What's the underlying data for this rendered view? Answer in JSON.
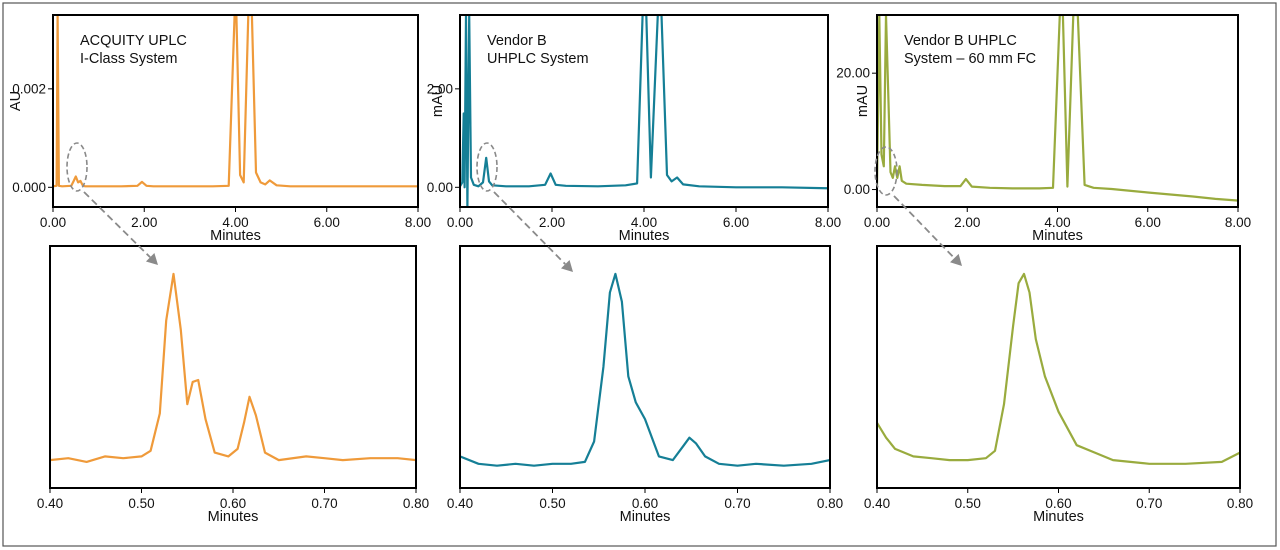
{
  "chart_data": [
    {
      "type": "line",
      "panel": "top-left",
      "annotation": [
        "ACQUITY UPLC",
        "I-Class System"
      ],
      "xlabel": "Minutes",
      "ylabel": "AU",
      "xlim": [
        0,
        8
      ],
      "ylim": [
        -0.0004,
        0.0035
      ],
      "xticks": [
        "0.00",
        "2.00",
        "4.00",
        "6.00",
        "8.00"
      ],
      "xtick_values": [
        0,
        2,
        4,
        6,
        8
      ],
      "yticks": [
        "0.000",
        "0.002"
      ],
      "ytick_values": [
        0,
        0.002
      ],
      "color": "#ef9a3a",
      "series": [
        {
          "x": [
            0,
            0.08,
            0.1,
            0.13,
            0.2,
            0.4,
            0.45,
            0.5,
            0.55,
            0.6,
            0.65,
            0.7,
            1.0,
            1.5,
            1.85,
            1.95,
            2.05,
            2.2,
            2.5,
            3.0,
            3.5,
            3.85,
            3.98,
            4.02,
            4.1,
            4.18,
            4.28,
            4.36,
            4.45,
            4.55,
            4.65,
            4.75,
            4.9,
            5.2,
            6.0,
            7.0,
            8.0
          ],
          "y": [
            2e-05,
            3e-05,
            0.0035,
            3e-05,
            2e-05,
            3e-05,
            0.00012,
            0.00022,
            0.0001,
            0.00013,
            4e-05,
            2e-05,
            2e-05,
            2e-05,
            3e-05,
            0.00011,
            3e-05,
            2e-05,
            2e-05,
            2e-05,
            2e-05,
            3e-05,
            0.0035,
            0.0035,
            0.00025,
            0.0001,
            0.0035,
            0.0035,
            0.0003,
            0.0001,
            6e-05,
            0.00014,
            4e-05,
            2e-05,
            2e-05,
            2e-05,
            2e-05
          ]
        }
      ]
    },
    {
      "type": "line",
      "panel": "top-middle",
      "annotation": [
        "Vendor B",
        "UHPLC System"
      ],
      "xlabel": "Minutes",
      "ylabel": "mAU",
      "xlim": [
        0,
        8
      ],
      "ylim": [
        -0.4,
        3.5
      ],
      "xticks": [
        "0.00",
        "2.00",
        "4.00",
        "6.00",
        "8.00"
      ],
      "xtick_values": [
        0,
        2,
        4,
        6,
        8
      ],
      "yticks": [
        "0.00",
        "2.00"
      ],
      "ytick_values": [
        0,
        2
      ],
      "color": "#157f96",
      "series": [
        {
          "x": [
            0,
            0.05,
            0.08,
            0.1,
            0.13,
            0.16,
            0.2,
            0.24,
            0.3,
            0.4,
            0.5,
            0.57,
            0.63,
            0.7,
            1.0,
            1.5,
            1.85,
            1.97,
            2.08,
            2.3,
            3.0,
            3.6,
            3.85,
            3.97,
            4.05,
            4.15,
            4.3,
            4.38,
            4.5,
            4.6,
            4.72,
            4.85,
            5.2,
            6.0,
            7.0,
            8.0
          ],
          "y": [
            0.02,
            0.1,
            1.5,
            0.0,
            3.5,
            -0.4,
            3.5,
            0.2,
            0.05,
            0.02,
            0.1,
            0.6,
            0.12,
            0.04,
            0.02,
            0.02,
            0.05,
            0.28,
            0.05,
            0.03,
            0.02,
            0.04,
            0.08,
            3.5,
            3.5,
            0.2,
            3.5,
            3.5,
            0.25,
            0.12,
            0.2,
            0.06,
            0.02,
            0.0,
            0.0,
            -0.02
          ]
        }
      ]
    },
    {
      "type": "line",
      "panel": "top-right",
      "annotation": [
        "Vendor B UHPLC",
        "System – 60 mm FC"
      ],
      "xlabel": "Minutes",
      "ylabel": "mAU",
      "xlim": [
        0,
        8
      ],
      "ylim": [
        -3,
        30
      ],
      "xticks": [
        "0.00",
        "2.00",
        "4.00",
        "6.00",
        "8.00"
      ],
      "xtick_values": [
        0,
        2,
        4,
        6,
        8
      ],
      "yticks": [
        "0.00",
        "20.00"
      ],
      "ytick_values": [
        0,
        20
      ],
      "color": "#99ab3e",
      "series": [
        {
          "x": [
            0,
            0.05,
            0.1,
            0.15,
            0.2,
            0.3,
            0.35,
            0.4,
            0.45,
            0.5,
            0.55,
            0.65,
            1.0,
            1.5,
            1.85,
            1.97,
            2.1,
            2.5,
            3.0,
            3.6,
            3.9,
            4.05,
            4.12,
            4.22,
            4.35,
            4.45,
            4.6,
            4.8,
            5.2,
            6.0,
            7.0,
            7.5,
            8.0
          ],
          "y": [
            0.5,
            30,
            6,
            4,
            30,
            3,
            2,
            4,
            2,
            4,
            1.5,
            1.0,
            0.8,
            0.6,
            0.6,
            1.8,
            0.5,
            0.3,
            0.2,
            0.2,
            0.3,
            30,
            30,
            0.5,
            30,
            30,
            0.8,
            0.3,
            0.1,
            -0.5,
            -1.2,
            -1.6,
            -1.9
          ]
        }
      ]
    },
    {
      "type": "line",
      "panel": "bottom-left",
      "xlabel": "Minutes",
      "xlim": [
        0.4,
        0.8
      ],
      "ylim": [
        -0.15,
        1.15
      ],
      "xticks": [
        "0.40",
        "0.50",
        "0.60",
        "0.70",
        "0.80"
      ],
      "xtick_values": [
        0.4,
        0.5,
        0.6,
        0.7,
        0.8
      ],
      "color": "#ef9a3a",
      "series": [
        {
          "x": [
            0.4,
            0.42,
            0.44,
            0.46,
            0.48,
            0.5,
            0.51,
            0.52,
            0.527,
            0.535,
            0.543,
            0.55,
            0.556,
            0.562,
            0.57,
            0.58,
            0.595,
            0.605,
            0.612,
            0.618,
            0.625,
            0.635,
            0.65,
            0.68,
            0.7,
            0.72,
            0.75,
            0.78,
            0.8
          ],
          "y": [
            0.0,
            0.01,
            -0.01,
            0.02,
            0.01,
            0.02,
            0.05,
            0.25,
            0.75,
            1.0,
            0.7,
            0.3,
            0.42,
            0.43,
            0.22,
            0.04,
            0.02,
            0.06,
            0.2,
            0.34,
            0.24,
            0.04,
            0.0,
            0.02,
            0.01,
            0.0,
            0.01,
            0.01,
            0.0
          ]
        }
      ]
    },
    {
      "type": "line",
      "panel": "bottom-middle",
      "xlabel": "Minutes",
      "xlim": [
        0.4,
        0.8
      ],
      "ylim": [
        -0.15,
        1.15
      ],
      "xticks": [
        "0.40",
        "0.50",
        "0.60",
        "0.70",
        "0.80"
      ],
      "xtick_values": [
        0.4,
        0.5,
        0.6,
        0.7,
        0.8
      ],
      "color": "#157f96",
      "series": [
        {
          "x": [
            0.4,
            0.42,
            0.44,
            0.46,
            0.48,
            0.5,
            0.52,
            0.535,
            0.545,
            0.555,
            0.562,
            0.568,
            0.575,
            0.582,
            0.59,
            0.6,
            0.615,
            0.63,
            0.642,
            0.648,
            0.655,
            0.665,
            0.68,
            0.7,
            0.72,
            0.75,
            0.78,
            0.8
          ],
          "y": [
            0.02,
            -0.02,
            -0.03,
            -0.02,
            -0.03,
            -0.02,
            -0.02,
            -0.01,
            0.1,
            0.5,
            0.9,
            1.0,
            0.85,
            0.45,
            0.31,
            0.22,
            0.02,
            0.0,
            0.08,
            0.12,
            0.09,
            0.02,
            -0.02,
            -0.03,
            -0.02,
            -0.03,
            -0.02,
            0.0
          ]
        }
      ]
    },
    {
      "type": "line",
      "panel": "bottom-right",
      "xlabel": "Minutes",
      "xlim": [
        0.4,
        0.8
      ],
      "ylim": [
        -0.15,
        1.15
      ],
      "xticks": [
        "0.40",
        "0.50",
        "0.60",
        "0.70",
        "0.80"
      ],
      "xtick_values": [
        0.4,
        0.5,
        0.6,
        0.7,
        0.8
      ],
      "color": "#99ab3e",
      "series": [
        {
          "x": [
            0.4,
            0.41,
            0.42,
            0.44,
            0.46,
            0.48,
            0.5,
            0.52,
            0.53,
            0.54,
            0.55,
            0.556,
            0.562,
            0.568,
            0.575,
            0.585,
            0.6,
            0.62,
            0.64,
            0.66,
            0.7,
            0.74,
            0.78,
            0.8
          ],
          "y": [
            0.2,
            0.12,
            0.06,
            0.02,
            0.01,
            0.0,
            0.0,
            0.01,
            0.05,
            0.3,
            0.72,
            0.95,
            1.0,
            0.9,
            0.65,
            0.45,
            0.26,
            0.08,
            0.04,
            0.0,
            -0.02,
            -0.02,
            -0.01,
            0.04
          ]
        }
      ]
    }
  ]
}
